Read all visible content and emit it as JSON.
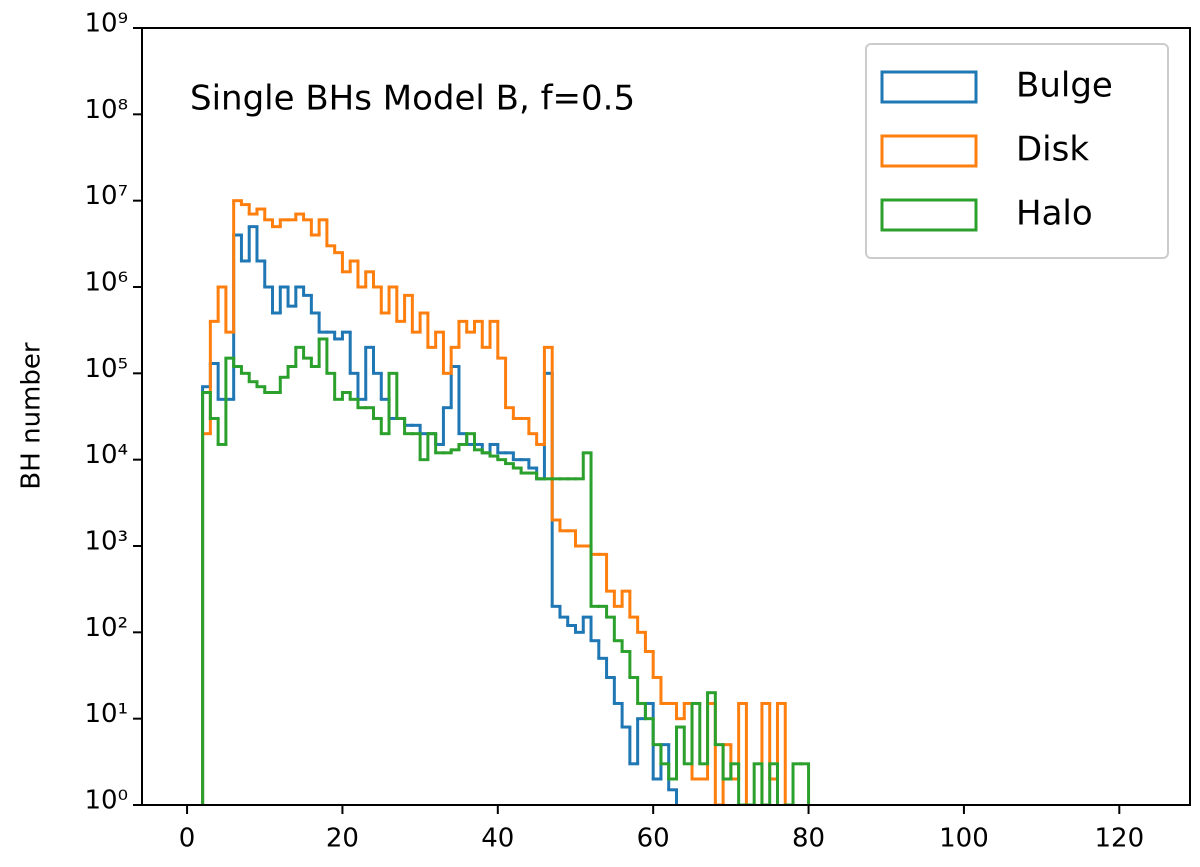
{
  "chart_data": {
    "type": "histogram",
    "annotation": "Single BHs Model B, f=0.5",
    "ylabel": "BH number",
    "bins": [
      2,
      3,
      4,
      5,
      6,
      7,
      8,
      9,
      10,
      11,
      12,
      13,
      14,
      15,
      16,
      17,
      18,
      19,
      20,
      21,
      22,
      23,
      24,
      25,
      26,
      27,
      28,
      29,
      30,
      31,
      32,
      33,
      34,
      35,
      36,
      37,
      38,
      39,
      40,
      41,
      42,
      43,
      44,
      45,
      46,
      47,
      48,
      49,
      50,
      51,
      52,
      53,
      54,
      55,
      56,
      57,
      58,
      59,
      60,
      61,
      62,
      63,
      64,
      65,
      66,
      67,
      68,
      69,
      70,
      71,
      72,
      73,
      74,
      75,
      76,
      77,
      78,
      79,
      80
    ],
    "series": [
      {
        "name": "Bulge",
        "color": "#1f77b4",
        "values": [
          70000,
          130000,
          50000,
          50000,
          4000000,
          2000000,
          5000000,
          2000000,
          1000000,
          500000,
          1000000,
          600000,
          1000000,
          800000,
          500000,
          300000,
          300000,
          250000,
          300000,
          100000,
          50000,
          200000,
          100000,
          50000,
          30000,
          30000,
          25000,
          25000,
          20000,
          20000,
          15000,
          40000,
          120000,
          20000,
          15000,
          15000,
          12000,
          15000,
          12000,
          12000,
          10000,
          10000,
          8000,
          6000,
          100000,
          200,
          150,
          120,
          100,
          150,
          80,
          50,
          30,
          15,
          8,
          3,
          10,
          15,
          2,
          5,
          1.5,
          0,
          0,
          0,
          0,
          0,
          0,
          0,
          0,
          0,
          0,
          0,
          0,
          0,
          0,
          0,
          0,
          0
        ]
      },
      {
        "name": "Disk",
        "color": "#ff7f0e",
        "values": [
          20000,
          400000,
          1000000,
          300000,
          10000000,
          9000000,
          7000000,
          8000000,
          6000000,
          5000000,
          6000000,
          6000000,
          7000000,
          6000000,
          4000000,
          6000000,
          3000000,
          2500000,
          1500000,
          2000000,
          1000000,
          1500000,
          1000000,
          500000,
          1000000,
          400000,
          800000,
          300000,
          500000,
          200000,
          300000,
          100000,
          200000,
          400000,
          300000,
          400000,
          200000,
          400000,
          150000,
          40000,
          30000,
          30000,
          20000,
          15000,
          200000,
          2000,
          1500,
          1500,
          1000,
          1000,
          800,
          800,
          300,
          200,
          300,
          150,
          100,
          60,
          30,
          15,
          15,
          10,
          15,
          2,
          2,
          15,
          1,
          5,
          2,
          15,
          0,
          0,
          15,
          2,
          15,
          0,
          0,
          0
        ]
      },
      {
        "name": "Halo",
        "color": "#2ca02c",
        "values": [
          60000,
          30000,
          15000,
          150000,
          120000,
          100000,
          80000,
          70000,
          60000,
          60000,
          90000,
          120000,
          200000,
          150000,
          120000,
          250000,
          100000,
          50000,
          60000,
          50000,
          40000,
          40000,
          30000,
          20000,
          100000,
          30000,
          20000,
          20000,
          10000,
          20000,
          12000,
          12000,
          13000,
          15000,
          20000,
          13000,
          12000,
          11000,
          10000,
          9000,
          8000,
          7000,
          7000,
          6000,
          6000,
          6000,
          6000,
          6000,
          6000,
          12000,
          200,
          200,
          150,
          80,
          60,
          30,
          15,
          10,
          5,
          3,
          2,
          8,
          3,
          15,
          3,
          20,
          5,
          2,
          3,
          1,
          1,
          3,
          1,
          3,
          0,
          1,
          3,
          3
        ]
      }
    ],
    "xlim": [
      -5.8,
      129.1
    ],
    "xticks": [
      0,
      20,
      40,
      60,
      80,
      100,
      120
    ],
    "ylim": [
      1,
      1000000000
    ],
    "log_y": true,
    "yticks": [
      {
        "value": 1,
        "label": "10⁰"
      },
      {
        "value": 10,
        "label": "10¹"
      },
      {
        "value": 100,
        "label": "10²"
      },
      {
        "value": 1000,
        "label": "10³"
      },
      {
        "value": 10000,
        "label": "10⁴"
      },
      {
        "value": 100000,
        "label": "10⁵"
      },
      {
        "value": 1000000,
        "label": "10⁶"
      },
      {
        "value": 10000000,
        "label": "10⁷"
      },
      {
        "value": 100000000,
        "label": "10⁸"
      },
      {
        "value": 1000000000,
        "label": "10⁹"
      }
    ],
    "legend": "upper right"
  }
}
